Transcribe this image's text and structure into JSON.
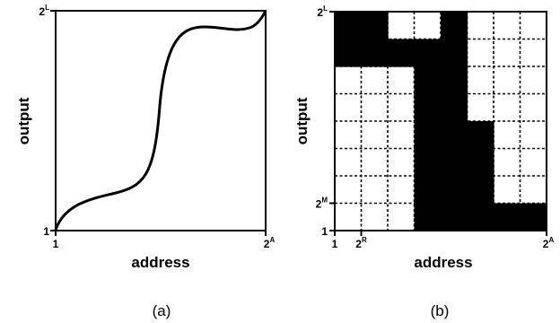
{
  "panel_a": {
    "caption": "(a)",
    "xlabel": "address",
    "ylabel": "output",
    "x_ticks": [
      {
        "base": "1",
        "exp": ""
      },
      {
        "base": "2",
        "exp": "A"
      }
    ],
    "y_ticks": [
      {
        "base": "1",
        "exp": ""
      },
      {
        "base": "2",
        "exp": "L"
      }
    ]
  },
  "panel_b": {
    "caption": "(b)",
    "xlabel": "address",
    "ylabel": "output",
    "x_ticks": [
      {
        "base": "1",
        "exp": ""
      },
      {
        "base": "2",
        "exp": "R"
      },
      {
        "base": "2",
        "exp": "A"
      }
    ],
    "y_ticks": [
      {
        "base": "1",
        "exp": ""
      },
      {
        "base": "2",
        "exp": "M"
      },
      {
        "base": "2",
        "exp": "L"
      }
    ],
    "grid_cols": 8,
    "grid_rows": 8,
    "filled_cells": [
      [
        0,
        6
      ],
      [
        0,
        7
      ],
      [
        1,
        6
      ],
      [
        1,
        7
      ],
      [
        2,
        6
      ],
      [
        3,
        6
      ],
      [
        3,
        5
      ],
      [
        3,
        4
      ],
      [
        3,
        3
      ],
      [
        3,
        2
      ],
      [
        3,
        1
      ],
      [
        3,
        0
      ],
      [
        4,
        7
      ],
      [
        4,
        6
      ],
      [
        4,
        5
      ],
      [
        4,
        4
      ],
      [
        4,
        3
      ],
      [
        4,
        2
      ],
      [
        4,
        1
      ],
      [
        4,
        0
      ],
      [
        5,
        3
      ],
      [
        5,
        2
      ],
      [
        5,
        1
      ],
      [
        5,
        0
      ],
      [
        6,
        0
      ],
      [
        7,
        0
      ]
    ]
  }
}
